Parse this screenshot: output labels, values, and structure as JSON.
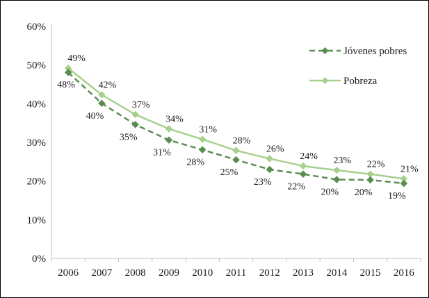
{
  "chart_data": {
    "type": "line",
    "title": "",
    "xlabel": "",
    "ylabel": "",
    "x": [
      "2006",
      "2007",
      "2008",
      "2009",
      "2010",
      "2011",
      "2012",
      "2013",
      "2014",
      "2015",
      "2016"
    ],
    "ylim": [
      0,
      60
    ],
    "yticks": [
      0,
      10,
      20,
      30,
      40,
      50,
      60
    ],
    "ytick_labels": [
      "0%",
      "10%",
      "20%",
      "30%",
      "40%",
      "50%",
      "60%"
    ],
    "grid": false,
    "legend_position": "top-right",
    "series": [
      {
        "name": "Jóvenes pobres",
        "color": "#5b8c52",
        "line_style": "dashed",
        "marker": "diamond",
        "values": [
          48.1,
          40.1,
          34.6,
          30.6,
          28.1,
          25.5,
          23.0,
          21.8,
          20.4,
          20.3,
          19.4
        ],
        "labels": [
          "48%",
          "40%",
          "35%",
          "31%",
          "28%",
          "25%",
          "23%",
          "22%",
          "20%",
          "20%",
          "19%"
        ]
      },
      {
        "name": "Pobreza",
        "color": "#a8d08d",
        "line_style": "solid",
        "marker": "diamond",
        "values": [
          49.2,
          42.3,
          37.2,
          33.5,
          30.8,
          27.9,
          25.8,
          23.9,
          22.8,
          21.8,
          20.6
        ],
        "labels": [
          "49%",
          "42%",
          "37%",
          "34%",
          "31%",
          "28%",
          "26%",
          "24%",
          "23%",
          "22%",
          "21%"
        ]
      }
    ]
  }
}
